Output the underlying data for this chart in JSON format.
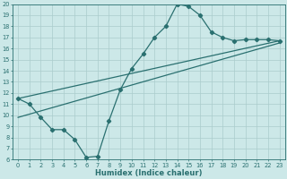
{
  "xlabel": "Humidex (Indice chaleur)",
  "bg_color": "#cce8e8",
  "grid_color": "#aacccc",
  "line_color": "#2a7070",
  "xlim": [
    -0.5,
    23.5
  ],
  "ylim": [
    6,
    20
  ],
  "xticks": [
    0,
    1,
    2,
    3,
    4,
    5,
    6,
    7,
    8,
    9,
    10,
    11,
    12,
    13,
    14,
    15,
    16,
    17,
    18,
    19,
    20,
    21,
    22,
    23
  ],
  "yticks": [
    6,
    7,
    8,
    9,
    10,
    11,
    12,
    13,
    14,
    15,
    16,
    17,
    18,
    19,
    20
  ],
  "curve1_x": [
    0,
    1,
    2,
    3,
    4,
    5,
    6,
    7,
    8,
    9,
    10,
    11,
    12,
    13,
    14,
    15,
    16,
    17,
    18,
    19,
    20,
    21,
    22,
    23
  ],
  "curve1_y": [
    11.5,
    11.0,
    9.8,
    8.7,
    8.7,
    7.8,
    6.2,
    6.3,
    9.5,
    12.3,
    14.2,
    15.5,
    17.0,
    18.0,
    20.0,
    19.8,
    19.0,
    17.5,
    17.0,
    16.7,
    16.8,
    16.8,
    16.8,
    16.7
  ],
  "line2_x": [
    0,
    23
  ],
  "line2_y": [
    11.5,
    16.7
  ],
  "line3_x": [
    0,
    23
  ],
  "line3_y": [
    9.8,
    16.5
  ],
  "marker_size": 2.2,
  "linewidth": 0.9,
  "tick_fontsize": 4.8,
  "xlabel_fontsize": 6.0
}
